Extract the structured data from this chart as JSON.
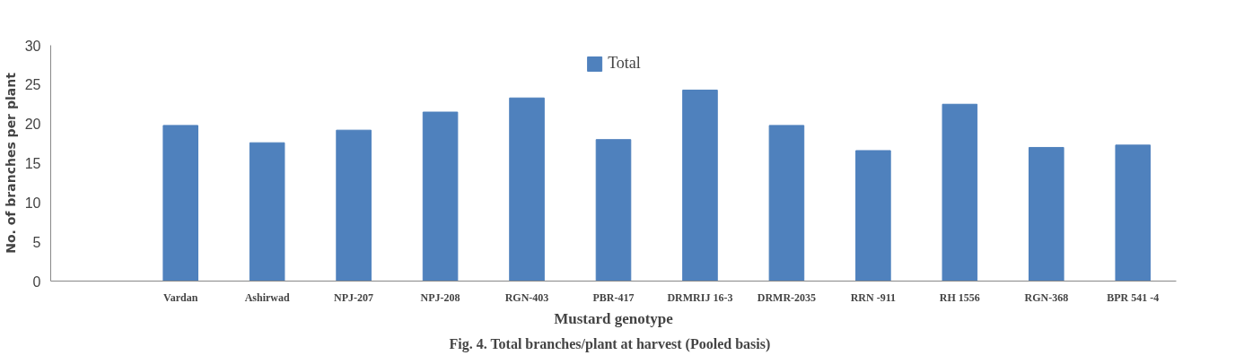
{
  "chart_data": {
    "type": "bar",
    "categories": [
      null,
      "Vardan",
      "Ashirwad",
      "NPJ-207",
      "NPJ-208",
      "RGN-403",
      "PBR-417",
      "DRMRIJ 16-3",
      "DRMR-2035",
      "RRN -911",
      "RH 1556",
      "RGN-368",
      "BPR 541 -4"
    ],
    "series": [
      {
        "name": "Total",
        "color": "#4f81bd",
        "values": [
          null,
          19.8,
          17.6,
          19.2,
          21.5,
          23.3,
          18.0,
          24.3,
          19.8,
          16.6,
          22.5,
          17.0,
          17.3
        ]
      }
    ],
    "xlabel": "Mustard genotype",
    "ylabel": "No. of branches per plant",
    "ylim": [
      0,
      30
    ],
    "yticks": [
      0,
      5,
      10,
      15,
      20,
      25,
      30
    ],
    "grid": false,
    "legend": "top",
    "annotations": [
      "Fig.  4. Total branches/plant at  harvest (Pooled basis)"
    ]
  }
}
